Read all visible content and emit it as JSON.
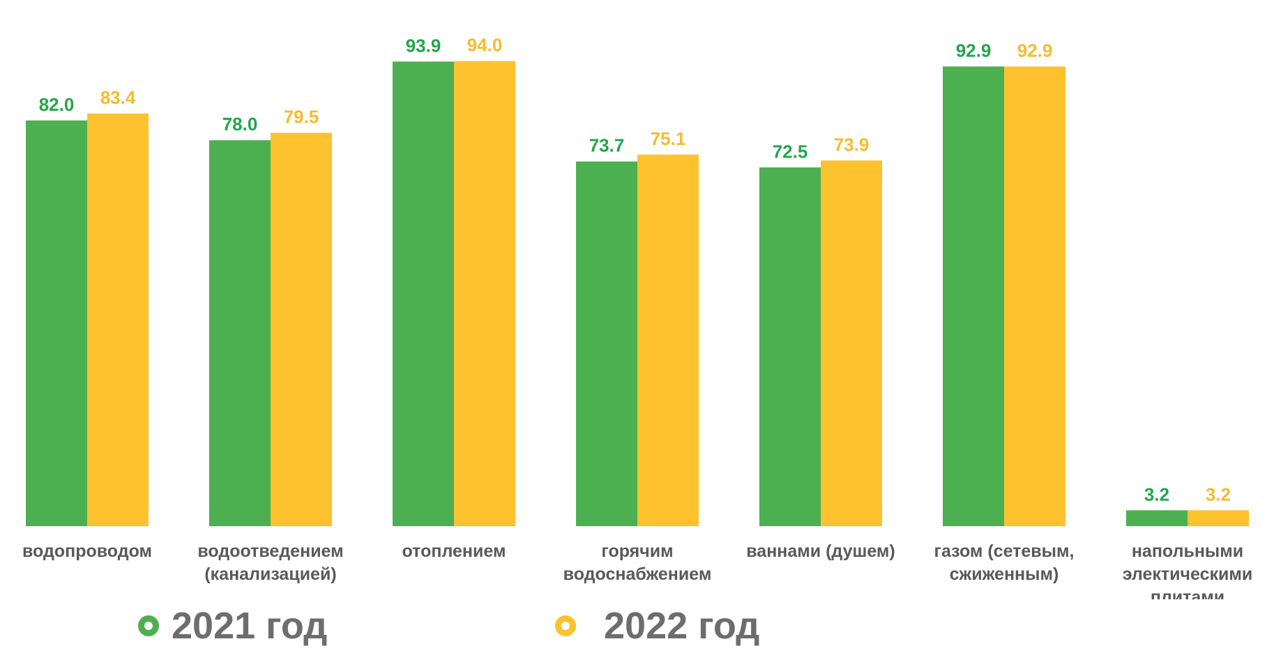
{
  "chart_data": {
    "type": "bar",
    "categories": [
      [
        "водопроводом"
      ],
      [
        "водоотведением",
        "(канализацией)"
      ],
      [
        "отоплением"
      ],
      [
        "горячим",
        "водоснабжением"
      ],
      [
        "ваннами (душем)"
      ],
      [
        "газом (сетевым,",
        "сжиженным)"
      ],
      [
        "напольными",
        "электическими",
        "плитами"
      ]
    ],
    "series": [
      {
        "name": "2021 год",
        "color": "#4caf50",
        "label_color": "#22a64b",
        "values": [
          82.0,
          78.0,
          93.9,
          73.7,
          72.5,
          92.9,
          3.2
        ],
        "labels": [
          "82.0",
          "78.0",
          "93.9",
          "73.7",
          "72.5",
          "92.9",
          "3.2"
        ]
      },
      {
        "name": "2022 год",
        "color": "#fdc22d",
        "label_color": "#f7bb2e",
        "values": [
          83.4,
          79.5,
          94.0,
          75.1,
          73.9,
          92.9,
          3.2
        ],
        "labels": [
          "83.4",
          "79.5",
          "94.0",
          "75.1",
          "73.9",
          "92.9",
          "3.2"
        ]
      }
    ],
    "ylim": [
      0,
      100
    ],
    "grid": false,
    "legend_position": "bottom"
  },
  "legend": {
    "items": [
      {
        "label": "2021 год",
        "color": "#4caf50"
      },
      {
        "label": "2022 год",
        "color": "#fdc22d"
      }
    ]
  }
}
